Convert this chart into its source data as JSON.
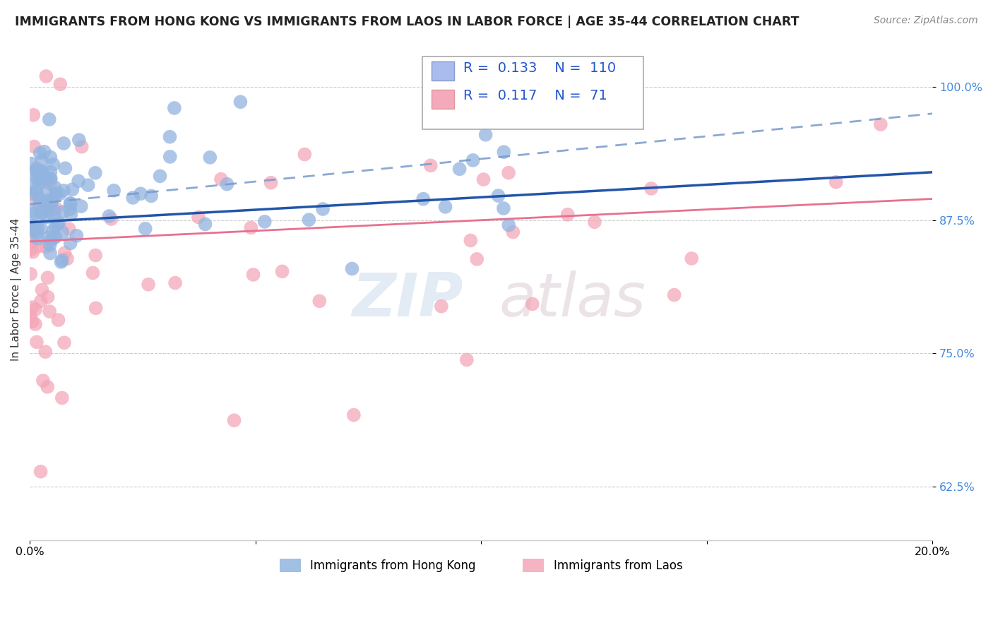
{
  "title": "IMMIGRANTS FROM HONG KONG VS IMMIGRANTS FROM LAOS IN LABOR FORCE | AGE 35-44 CORRELATION CHART",
  "source": "Source: ZipAtlas.com",
  "ylabel": "In Labor Force | Age 35-44",
  "xlim": [
    0.0,
    0.2
  ],
  "ylim": [
    0.575,
    1.045
  ],
  "yticks": [
    0.625,
    0.75,
    0.875,
    1.0
  ],
  "xticks": [
    0.0,
    0.05,
    0.1,
    0.15,
    0.2
  ],
  "hk_color": "#92b4e0",
  "laos_color": "#f4a7b9",
  "hk_line_color": "#2255aa",
  "laos_line_color": "#e87090",
  "hk_R": 0.133,
  "hk_N": 110,
  "laos_R": 0.117,
  "laos_N": 71,
  "watermark_top": "ZIP",
  "watermark_bot": "atlas",
  "title_fontsize": 12.5,
  "source_fontsize": 10,
  "tick_fontsize": 11.5,
  "ytick_color": "#4488dd",
  "legend_R_color": "#2255cc",
  "legend_box_hk_face": "#aabbee",
  "legend_box_laos_face": "#f4aabb",
  "dot_size": 200
}
